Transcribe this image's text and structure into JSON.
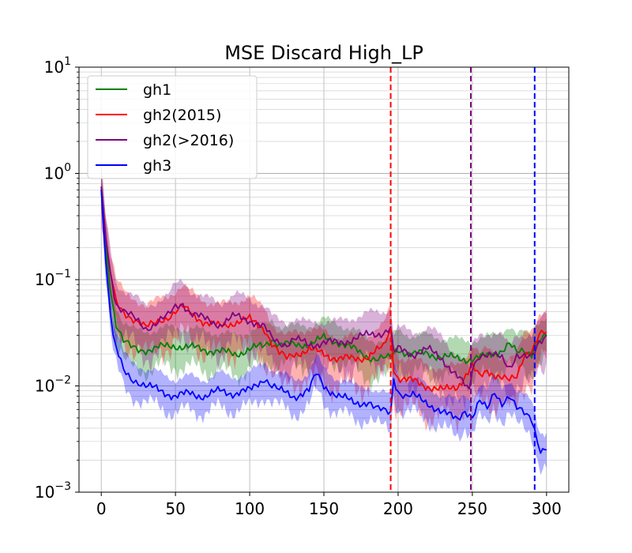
{
  "chart_data": {
    "type": "line",
    "title": "MSE Discard High_LP",
    "xlabel": "",
    "ylabel": "",
    "yscale": "log",
    "xlim": [
      -15,
      315
    ],
    "ylim": [
      0.001,
      10
    ],
    "grid": "on (major and minor)",
    "legend_position": "top-left",
    "x_ticks": [
      "0",
      "50",
      "100",
      "150",
      "200",
      "250",
      "300"
    ],
    "x_tick_values": [
      0,
      50,
      100,
      150,
      200,
      250,
      300
    ],
    "y_ticks": [
      {
        "base": "10",
        "exp": "−3",
        "value": 0.001
      },
      {
        "base": "10",
        "exp": "−2",
        "value": 0.01
      },
      {
        "base": "10",
        "exp": "−1",
        "value": 0.1
      },
      {
        "base": "10",
        "exp": "0",
        "value": 1
      },
      {
        "base": "10",
        "exp": "1",
        "value": 10
      }
    ],
    "series": [
      {
        "name": "gh1",
        "color": "#008000",
        "x": [
          0,
          3,
          6,
          10,
          15,
          20,
          25,
          30,
          40,
          50,
          60,
          70,
          80,
          90,
          100,
          110,
          115,
          120,
          130,
          140,
          150,
          160,
          170,
          180,
          185,
          190,
          195,
          197,
          200,
          210,
          220,
          230,
          240,
          250,
          260,
          270,
          275,
          280,
          285,
          290,
          292,
          295,
          300
        ],
        "y": [
          0.7,
          0.22,
          0.08,
          0.038,
          0.026,
          0.023,
          0.022,
          0.022,
          0.023,
          0.024,
          0.023,
          0.022,
          0.021,
          0.02,
          0.022,
          0.024,
          0.028,
          0.025,
          0.024,
          0.025,
          0.028,
          0.026,
          0.022,
          0.019,
          0.018,
          0.018,
          0.018,
          0.02,
          0.022,
          0.02,
          0.02,
          0.019,
          0.018,
          0.018,
          0.019,
          0.022,
          0.025,
          0.02,
          0.021,
          0.02,
          0.025,
          0.028,
          0.03
        ],
        "band": [
          0.35,
          0.5
        ]
      },
      {
        "name": "gh2(2015)",
        "color": "#ff0000",
        "x": [
          0,
          3,
          6,
          10,
          15,
          20,
          25,
          30,
          35,
          40,
          45,
          50,
          55,
          60,
          70,
          80,
          90,
          100,
          110,
          115,
          120,
          125,
          130,
          140,
          150,
          160,
          170,
          180,
          190,
          195,
          197,
          200,
          210,
          220,
          230,
          240,
          250,
          255,
          260,
          270,
          275,
          280,
          285,
          290,
          292,
          295,
          300
        ],
        "y": [
          0.75,
          0.25,
          0.12,
          0.06,
          0.05,
          0.045,
          0.04,
          0.035,
          0.038,
          0.042,
          0.045,
          0.05,
          0.055,
          0.048,
          0.04,
          0.036,
          0.04,
          0.042,
          0.035,
          0.025,
          0.02,
          0.018,
          0.02,
          0.022,
          0.02,
          0.018,
          0.018,
          0.019,
          0.023,
          0.035,
          0.015,
          0.012,
          0.011,
          0.01,
          0.009,
          0.01,
          0.015,
          0.012,
          0.014,
          0.012,
          0.011,
          0.012,
          0.02,
          0.022,
          0.025,
          0.03,
          0.032
        ],
        "band": [
          0.45,
          0.6
        ]
      },
      {
        "name": "gh2(>2016)",
        "color": "#800080",
        "x": [
          0,
          3,
          6,
          10,
          15,
          20,
          25,
          30,
          35,
          40,
          45,
          50,
          55,
          60,
          70,
          80,
          90,
          100,
          110,
          115,
          120,
          125,
          130,
          140,
          150,
          160,
          170,
          180,
          190,
          195,
          197,
          200,
          210,
          220,
          230,
          240,
          248,
          250,
          255,
          260,
          270,
          275,
          280,
          285,
          290,
          292,
          295,
          300
        ],
        "y": [
          0.75,
          0.25,
          0.12,
          0.06,
          0.05,
          0.045,
          0.04,
          0.035,
          0.038,
          0.042,
          0.045,
          0.055,
          0.06,
          0.05,
          0.042,
          0.038,
          0.045,
          0.042,
          0.035,
          0.028,
          0.026,
          0.025,
          0.028,
          0.024,
          0.026,
          0.025,
          0.028,
          0.03,
          0.032,
          0.035,
          0.02,
          0.022,
          0.02,
          0.022,
          0.018,
          0.012,
          0.009,
          0.015,
          0.02,
          0.02,
          0.018,
          0.015,
          0.02,
          0.019,
          0.018,
          0.02,
          0.025,
          0.03
        ],
        "band": [
          0.45,
          0.6
        ]
      },
      {
        "name": "gh3",
        "color": "#0000ff",
        "x": [
          0,
          3,
          6,
          8,
          10,
          15,
          20,
          25,
          30,
          40,
          50,
          60,
          70,
          80,
          90,
          100,
          110,
          115,
          120,
          130,
          140,
          145,
          150,
          160,
          170,
          180,
          185,
          190,
          195,
          197,
          200,
          205,
          210,
          220,
          230,
          240,
          245,
          250,
          255,
          260,
          265,
          270,
          275,
          280,
          285,
          290,
          292,
          294,
          296,
          300
        ],
        "y": [
          0.7,
          0.15,
          0.05,
          0.03,
          0.022,
          0.014,
          0.012,
          0.011,
          0.01,
          0.009,
          0.008,
          0.0085,
          0.008,
          0.009,
          0.0085,
          0.009,
          0.012,
          0.01,
          0.009,
          0.008,
          0.009,
          0.013,
          0.01,
          0.008,
          0.007,
          0.007,
          0.006,
          0.0058,
          0.0057,
          0.012,
          0.009,
          0.008,
          0.008,
          0.007,
          0.0055,
          0.005,
          0.006,
          0.005,
          0.007,
          0.006,
          0.009,
          0.007,
          0.008,
          0.006,
          0.0055,
          0.005,
          0.004,
          0.003,
          0.0026,
          0.0025
        ],
        "band": [
          0.3,
          0.45
        ]
      }
    ],
    "vlines": [
      {
        "x": 195,
        "color": "#ff0000"
      },
      {
        "x": 249,
        "color": "#800080"
      },
      {
        "x": 292,
        "color": "#0000ff"
      }
    ]
  }
}
